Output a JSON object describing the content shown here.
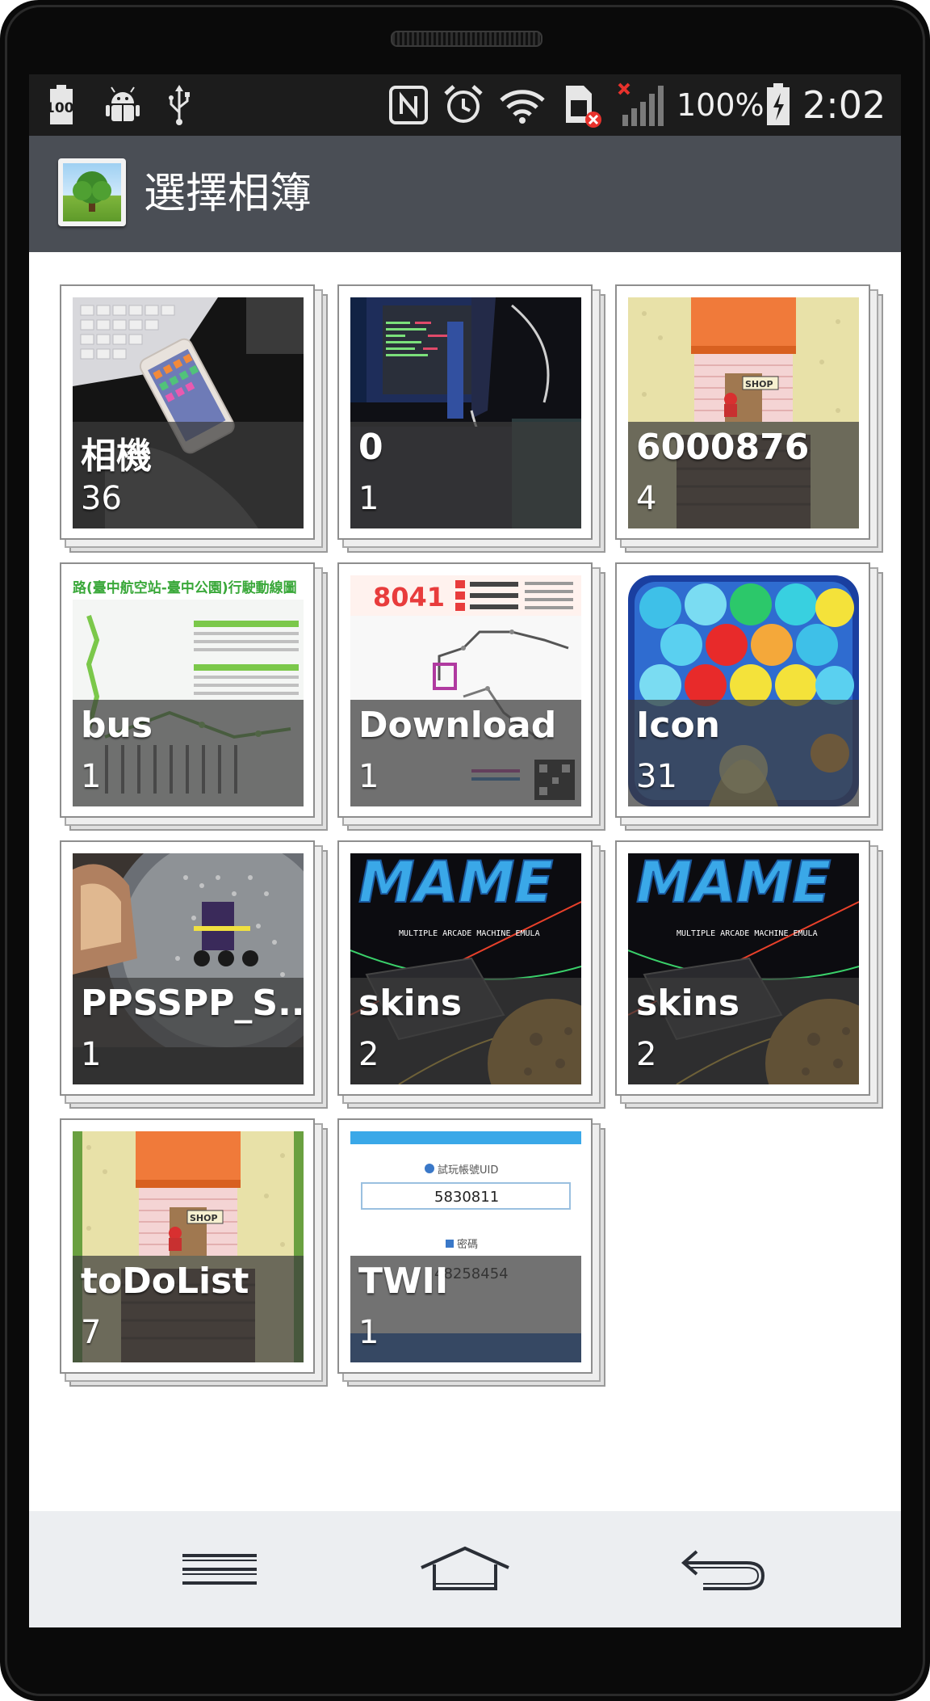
{
  "status_bar": {
    "battery_saver_label": "100",
    "battery_percent": "100%",
    "time": "2:02",
    "icons": [
      "battery-100-icon",
      "android-debug-icon",
      "usb-icon",
      "nfc-icon",
      "alarm-icon",
      "wifi-icon",
      "sim-card-error-icon",
      "signal-off-icon",
      "battery-charging-icon"
    ]
  },
  "action_bar": {
    "title": "選擇相簿",
    "app_icon": "gallery-tree-icon"
  },
  "albums": [
    {
      "name": "相機",
      "count": "36"
    },
    {
      "name": "0",
      "count": "1"
    },
    {
      "name": "6000876",
      "count": "4"
    },
    {
      "name": "bus",
      "count": "1"
    },
    {
      "name": "Download",
      "count": "1"
    },
    {
      "name": "Icon",
      "count": "31"
    },
    {
      "name": "PPSSPP_S...",
      "count": "1"
    },
    {
      "name": "skins",
      "count": "2"
    },
    {
      "name": "skins",
      "count": "2"
    },
    {
      "name": "toDoList",
      "count": "7"
    },
    {
      "name": "TWII",
      "count": "1"
    }
  ],
  "thumb_text": {
    "bus_header": "路(臺中航空站-臺中公園)行駛動線圖",
    "download_route": "8041",
    "mame_logo": "MAME",
    "mame_caption": "MULTIPLE ARCADE MACHINE EMULA",
    "shop_sign": "SHOP",
    "twii_uid_label": "試玩帳號UID",
    "twii_uid": "5830811",
    "twii_pw_label": "密碼",
    "twii_pw": "48258454"
  },
  "nav_bar": {
    "buttons": [
      "menu-icon",
      "home-icon",
      "back-icon"
    ]
  },
  "colors": {
    "status_bar": "#1c1c1c",
    "action_bar": "#4a4e55",
    "nav_bar": "#eceef1",
    "phone_body": "#0a0a0a"
  }
}
